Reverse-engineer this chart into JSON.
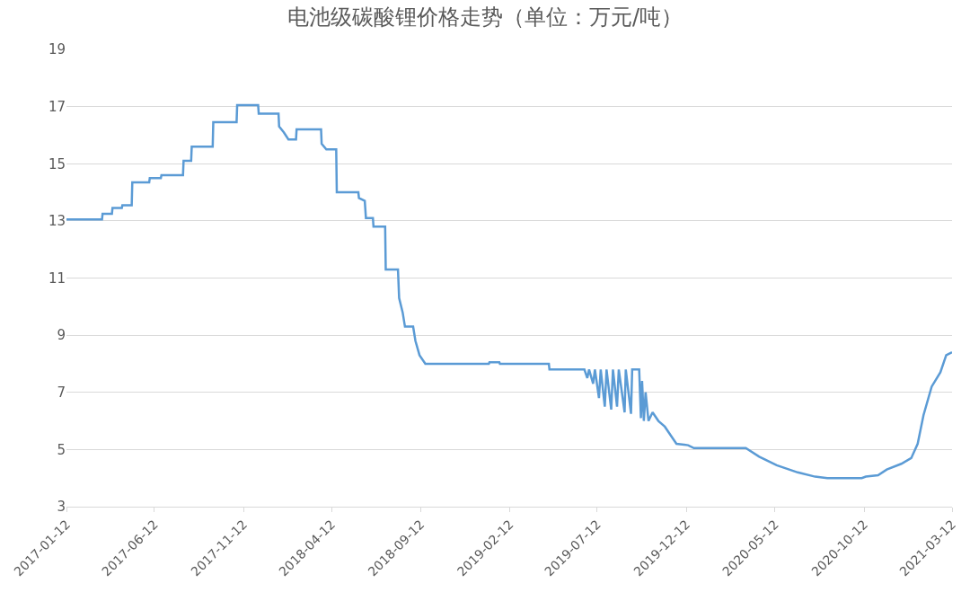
{
  "chart_data": {
    "type": "line",
    "title": "电池级碳酸锂价格走势（单位：万元/吨）",
    "x": [
      "2017-01-12",
      "2017-03-14",
      "2017-03-15",
      "2017-03-31",
      "2017-04-01",
      "2017-04-17",
      "2017-04-18",
      "2017-05-04",
      "2017-05-05",
      "2017-06-03",
      "2017-06-04",
      "2017-06-23",
      "2017-06-24",
      "2017-07-31",
      "2017-08-01",
      "2017-08-14",
      "2017-08-15",
      "2017-09-20",
      "2017-09-21",
      "2017-10-31",
      "2017-11-01",
      "2017-12-07",
      "2017-12-08",
      "2018-01-11",
      "2018-01-12",
      "2018-01-20",
      "2018-01-28",
      "2018-02-10",
      "2018-02-11",
      "2018-03-25",
      "2018-03-26",
      "2018-04-03",
      "2018-04-20",
      "2018-04-21",
      "2018-05-28",
      "2018-05-29",
      "2018-06-08",
      "2018-06-10",
      "2018-06-22",
      "2018-06-23",
      "2018-07-13",
      "2018-07-14",
      "2018-08-04",
      "2018-08-06",
      "2018-08-12",
      "2018-08-16",
      "2018-08-30",
      "2018-09-03",
      "2018-09-10",
      "2018-09-20",
      "2019-01-07",
      "2019-01-08",
      "2019-01-25",
      "2019-01-26",
      "2019-04-20",
      "2019-04-21",
      "2019-06-20",
      "2019-06-25",
      "2019-06-28",
      "2019-07-05",
      "2019-07-08",
      "2019-07-15",
      "2019-07-18",
      "2019-07-25",
      "2019-07-28",
      "2019-08-05",
      "2019-08-08",
      "2019-08-15",
      "2019-08-18",
      "2019-08-28",
      "2019-08-30",
      "2019-09-08",
      "2019-09-10",
      "2019-09-22",
      "2019-09-25",
      "2019-09-27",
      "2019-09-30",
      "2019-10-03",
      "2019-10-08",
      "2019-10-15",
      "2019-10-25",
      "2019-11-05",
      "2019-11-15",
      "2019-11-25",
      "2019-12-15",
      "2019-12-25",
      "2020-03-23",
      "2020-04-15",
      "2020-05-15",
      "2020-06-20",
      "2020-07-20",
      "2020-08-10",
      "2020-10-08",
      "2020-10-15",
      "2020-11-05",
      "2020-11-20",
      "2020-12-15",
      "2021-01-01",
      "2021-01-12",
      "2021-01-22",
      "2021-02-05",
      "2021-02-20",
      "2021-03-02",
      "2021-03-12"
    ],
    "series": [
      {
        "color": "#5b9bd5",
        "values": [
          13.05,
          13.05,
          13.25,
          13.25,
          13.45,
          13.45,
          13.55,
          13.55,
          14.35,
          14.35,
          14.5,
          14.5,
          14.6,
          14.6,
          15.1,
          15.1,
          15.6,
          15.6,
          16.45,
          16.45,
          17.05,
          17.05,
          16.75,
          16.75,
          16.3,
          16.1,
          15.85,
          15.85,
          16.2,
          16.2,
          15.7,
          15.5,
          15.5,
          14.0,
          14.0,
          13.8,
          13.7,
          13.1,
          13.1,
          12.8,
          12.8,
          11.3,
          11.3,
          10.3,
          9.8,
          9.3,
          9.3,
          8.8,
          8.3,
          8.0,
          8.0,
          8.05,
          8.05,
          8.0,
          8.0,
          7.8,
          7.8,
          7.5,
          7.8,
          7.3,
          7.8,
          6.8,
          7.8,
          6.5,
          7.8,
          6.4,
          7.8,
          6.5,
          7.8,
          6.3,
          7.8,
          6.25,
          7.8,
          7.8,
          6.1,
          7.4,
          6.0,
          7.0,
          6.0,
          6.3,
          6.0,
          5.8,
          5.5,
          5.2,
          5.15,
          5.05,
          5.05,
          4.75,
          4.45,
          4.2,
          4.05,
          4.0,
          4.0,
          4.05,
          4.1,
          4.3,
          4.5,
          4.7,
          5.2,
          6.2,
          7.2,
          7.7,
          8.3,
          8.4
        ]
      }
    ],
    "xlim": [
      "2017-01-12",
      "2021-03-12"
    ],
    "xticks": [
      "2017-01-12",
      "2017-06-12",
      "2017-11-12",
      "2018-04-12",
      "2018-09-12",
      "2019-02-12",
      "2019-07-12",
      "2019-12-12",
      "2020-05-12",
      "2020-10-12",
      "2021-03-12"
    ],
    "ylim": [
      3,
      19
    ],
    "yticks": [
      3,
      5,
      7,
      9,
      11,
      13,
      15,
      17,
      19
    ],
    "grid": "y",
    "marker": "none",
    "line_style": "solid"
  }
}
